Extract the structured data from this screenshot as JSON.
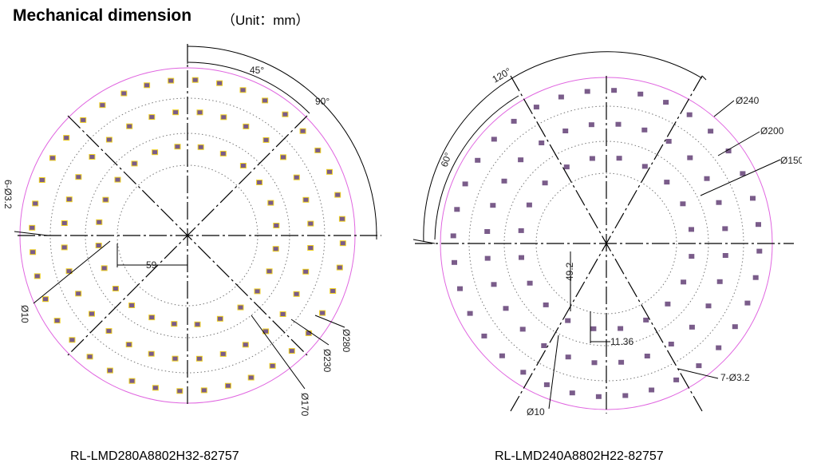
{
  "header": {
    "title": "Mechanical dimension",
    "unit": "（Unit：mm）"
  },
  "left_board": {
    "model": "RL-LMD280A8802H32-82757",
    "labels": {
      "angle_45": "45°",
      "angle_90": "90°",
      "d280": "Ø280",
      "d230": "Ø230",
      "d170": "Ø170",
      "d10": "Ø10",
      "holes": "6-Ø3.2",
      "offset": "59"
    }
  },
  "right_board": {
    "model": "RL-LMD240A8802H22-82757",
    "labels": {
      "angle_120": "120°",
      "angle_60": "60°",
      "d240": "Ø240",
      "d200": "Ø200",
      "d150": "Ø150",
      "d10": "Ø10",
      "holes": "7-Ø3.2",
      "dim_492": "49.2",
      "dim_1136": "11.36"
    }
  },
  "colors": {
    "outline": "#e066e0",
    "led": "#7a5c8a",
    "pad": "#f0d020",
    "dim_line": "#000000",
    "dotted_ring": "#777777"
  }
}
